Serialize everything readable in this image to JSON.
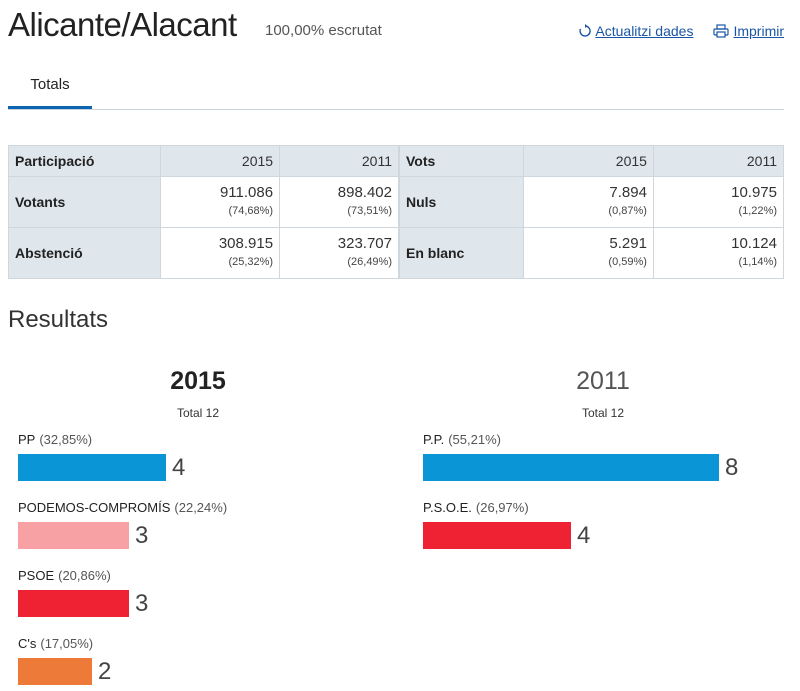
{
  "header": {
    "title": "Alicante/Alacant",
    "subtitle": "100,00% escrutat",
    "update_label": "Actualitzi dades",
    "print_label": "Imprimir"
  },
  "tabs": [
    {
      "label": "Totals"
    }
  ],
  "participation": {
    "headers": {
      "participacio": "Participació",
      "vots": "Vots",
      "y2015": "2015",
      "y2011": "2011"
    },
    "rows": [
      {
        "label": "Votants",
        "v2015": "911.086",
        "p2015": "(74,68%)",
        "v2011": "898.402",
        "p2011": "(73,51%)",
        "label2": "Nuls",
        "w2015": "7.894",
        "q2015": "(0,87%)",
        "w2011": "10.975",
        "q2011": "(1,22%)"
      },
      {
        "label": "Abstenció",
        "v2015": "308.915",
        "p2015": "(25,32%)",
        "v2011": "323.707",
        "p2011": "(26,49%)",
        "label2": "En blanc",
        "w2015": "5.291",
        "q2015": "(0,59%)",
        "w2011": "10.124",
        "q2011": "(1,14%)"
      }
    ]
  },
  "results": {
    "title": "Resultats",
    "y2015": {
      "year": "2015",
      "total": "Total 12",
      "parties": [
        {
          "name": "PP",
          "pct": "(32,85%)",
          "seats": 4,
          "color": "#0a96d6"
        },
        {
          "name": "PODEMOS-COMPROMÍS",
          "pct": "(22,24%)",
          "seats": 3,
          "color": "#f7a1a4"
        },
        {
          "name": "PSOE",
          "pct": "(20,86%)",
          "seats": 3,
          "color": "#ee2233"
        },
        {
          "name": "C's",
          "pct": "(17,05%)",
          "seats": 2,
          "color": "#ee7a3a"
        }
      ]
    },
    "y2011": {
      "year": "2011",
      "total": "Total 12",
      "parties": [
        {
          "name": "P.P.",
          "pct": "(55,21%)",
          "seats": 8,
          "color": "#0a96d6"
        },
        {
          "name": "P.S.O.E.",
          "pct": "(26,97%)",
          "seats": 4,
          "color": "#ee2233"
        }
      ]
    }
  }
}
